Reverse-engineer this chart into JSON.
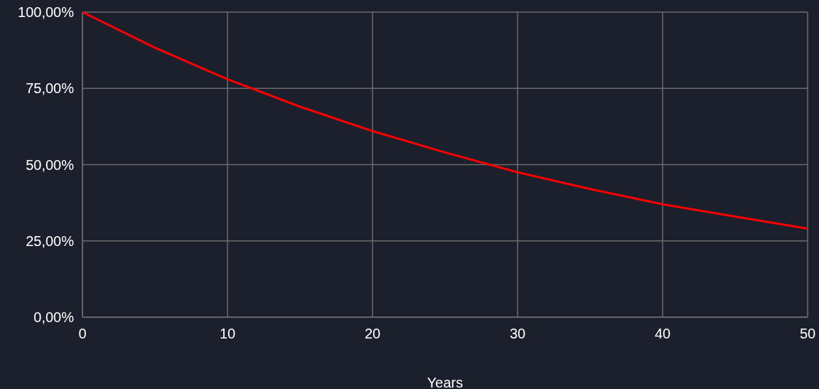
{
  "chart_data": {
    "type": "line",
    "xlabel": "Years",
    "x": [
      0,
      5,
      10,
      15,
      20,
      25,
      30,
      35,
      40,
      45,
      50
    ],
    "series": [
      {
        "color": "#ff0000",
        "values": [
          100,
          88.3,
          78,
          69,
          61,
          54,
          47.5,
          42,
          37,
          33,
          29
        ]
      }
    ],
    "xlim": [
      0,
      50
    ],
    "xticks": [
      0,
      10,
      20,
      30,
      40,
      50
    ],
    "ylim": [
      0,
      100
    ],
    "yticks": [
      {
        "value": 0,
        "label": "0,00%"
      },
      {
        "value": 25,
        "label": "25,00%"
      },
      {
        "value": 50,
        "label": "50,00%"
      },
      {
        "value": 75,
        "label": "75,00%"
      },
      {
        "value": 100,
        "label": "100,00%"
      }
    ],
    "grid": true,
    "marker": "none",
    "line_style": "solid"
  }
}
